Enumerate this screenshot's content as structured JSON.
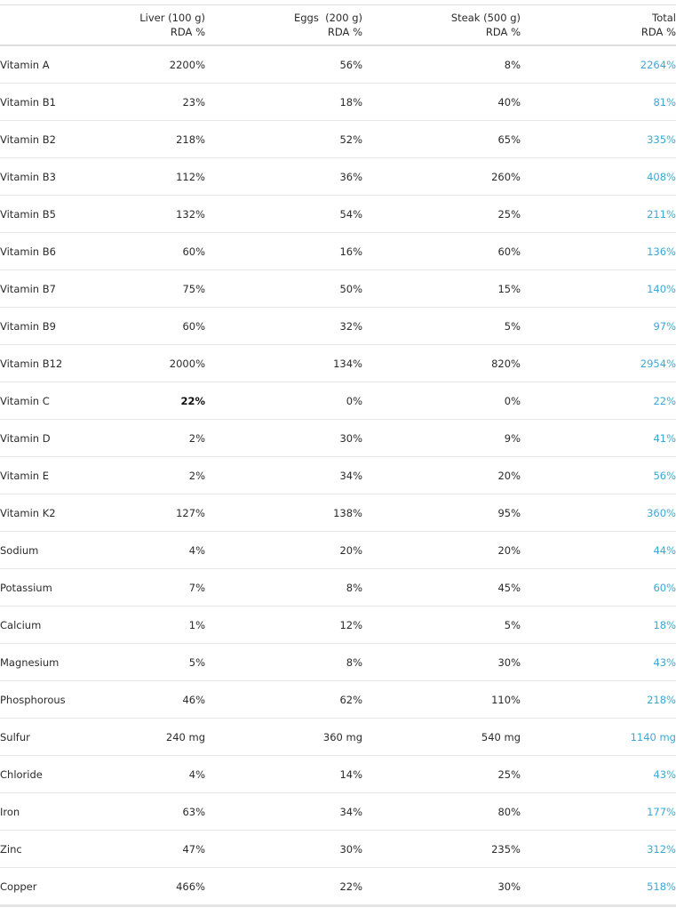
{
  "table": {
    "headers": [
      {
        "line1": "",
        "line2": ""
      },
      {
        "line1": "Liver (100 g)",
        "line2": "RDA %"
      },
      {
        "line1": "Eggs  (200 g)",
        "line2": "RDA %"
      },
      {
        "line1": "Steak (500 g)",
        "line2": "RDA %"
      },
      {
        "line1": "Total",
        "line2": "RDA %"
      }
    ],
    "rows": [
      {
        "name": "Vitamin A",
        "liver": "2200%",
        "eggs": "56%",
        "steak": "8%",
        "total": "2264%"
      },
      {
        "name": "Vitamin B1",
        "liver": "23%",
        "eggs": "18%",
        "steak": "40%",
        "total": "81%"
      },
      {
        "name": "Vitamin B2",
        "liver": "218%",
        "eggs": "52%",
        "steak": "65%",
        "total": "335%"
      },
      {
        "name": "Vitamin B3",
        "liver": "112%",
        "eggs": "36%",
        "steak": "260%",
        "total": "408%"
      },
      {
        "name": "Vitamin B5",
        "liver": "132%",
        "eggs": "54%",
        "steak": "25%",
        "total": "211%"
      },
      {
        "name": "Vitamin B6",
        "liver": "60%",
        "eggs": "16%",
        "steak": "60%",
        "total": "136%"
      },
      {
        "name": "Vitamin B7",
        "liver": "75%",
        "eggs": "50%",
        "steak": "15%",
        "total": "140%"
      },
      {
        "name": "Vitamin B9",
        "liver": "60%",
        "eggs": "32%",
        "steak": "5%",
        "total": "97%"
      },
      {
        "name": "Vitamin B12",
        "liver": "2000%",
        "eggs": "134%",
        "steak": "820%",
        "total": "2954%"
      },
      {
        "name": "Vitamin C",
        "liver": "22%",
        "eggs": "0%",
        "steak": "0%",
        "total": "22%"
      },
      {
        "name": "Vitamin D",
        "liver": "2%",
        "eggs": "30%",
        "steak": "9%",
        "total": "41%"
      },
      {
        "name": "Vitamin E",
        "liver": "2%",
        "eggs": "34%",
        "steak": "20%",
        "total": "56%"
      },
      {
        "name": "Vitamin K2",
        "liver": "127%",
        "eggs": "138%",
        "steak": "95%",
        "total": "360%"
      },
      {
        "name": "Sodium",
        "liver": "4%",
        "eggs": "20%",
        "steak": "20%",
        "total": "44%"
      },
      {
        "name": "Potassium",
        "liver": "7%",
        "eggs": "8%",
        "steak": "45%",
        "total": "60%"
      },
      {
        "name": "Calcium",
        "liver": "1%",
        "eggs": "12%",
        "steak": "5%",
        "total": "18%"
      },
      {
        "name": "Magnesium",
        "liver": "5%",
        "eggs": "8%",
        "steak": "30%",
        "total": "43%"
      },
      {
        "name": "Phosphorous",
        "liver": "46%",
        "eggs": "62%",
        "steak": "110%",
        "total": "218%"
      },
      {
        "name": "Sulfur",
        "liver": "240 mg",
        "eggs": "360 mg",
        "steak": "540 mg",
        "total": "1140 mg"
      },
      {
        "name": "Chloride",
        "liver": "4%",
        "eggs": "14%",
        "steak": "25%",
        "total": "43%"
      },
      {
        "name": "Iron",
        "liver": "63%",
        "eggs": "34%",
        "steak": "80%",
        "total": "177%"
      },
      {
        "name": "Zinc",
        "liver": "47%",
        "eggs": "30%",
        "steak": "235%",
        "total": "312%"
      },
      {
        "name": "Copper",
        "liver": "466%",
        "eggs": "22%",
        "steak": "30%",
        "total": "518%"
      }
    ]
  },
  "colors": {
    "text": "#2b2b2b",
    "total_accent": "#3aa9d4",
    "rule": "#e6e6e6"
  }
}
